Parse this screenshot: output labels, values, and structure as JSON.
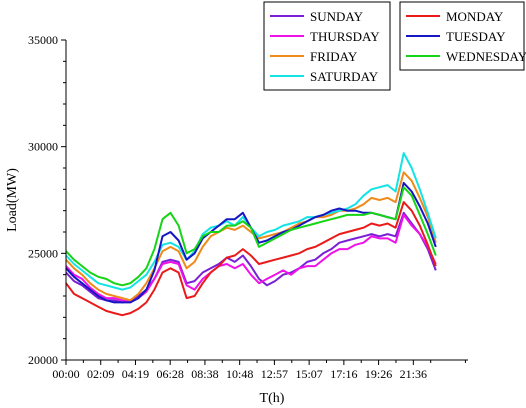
{
  "chart_data": {
    "type": "line",
    "xlabel": "T(h)",
    "ylabel": "Load(MW)",
    "ylim": [
      20000,
      35000
    ],
    "yticks": [
      20000,
      25000,
      30000,
      35000
    ],
    "x_hours": [
      0,
      0.5,
      1,
      1.5,
      2,
      2.5,
      3,
      3.5,
      4,
      4.5,
      5,
      5.5,
      6,
      6.5,
      7,
      7.5,
      8,
      8.5,
      9,
      9.5,
      10,
      10.5,
      11,
      11.5,
      12,
      12.5,
      13,
      13.5,
      14,
      14.5,
      15,
      15.5,
      16,
      16.5,
      17,
      17.5,
      18,
      18.5,
      19,
      19.5,
      20,
      20.5,
      21,
      21.5,
      22,
      22.5,
      23
    ],
    "xtick_labels": [
      "00:00",
      "02:09",
      "04:19",
      "06:28",
      "08:38",
      "10:48",
      "12:57",
      "15:07",
      "17:16",
      "19:26",
      "21:36"
    ],
    "grid": false,
    "legend_position": "top-right",
    "series": [
      {
        "name": "SUNDAY",
        "color": "#7a1fd6",
        "values": [
          24100,
          23700,
          23500,
          23200,
          22900,
          22800,
          22800,
          22700,
          22800,
          23000,
          23300,
          23800,
          24600,
          24700,
          24600,
          23600,
          23700,
          24100,
          24300,
          24500,
          24800,
          24600,
          24900,
          24400,
          23800,
          23500,
          23700,
          24000,
          24100,
          24300,
          24600,
          24700,
          25000,
          25200,
          25500,
          25600,
          25700,
          25800,
          25900,
          25800,
          25900,
          25800,
          26900,
          26400,
          25900,
          25200,
          24200
        ]
      },
      {
        "name": "THURSDAY",
        "color": "#ee12e8",
        "values": [
          24400,
          24000,
          23800,
          23400,
          23100,
          22900,
          22900,
          22800,
          22700,
          22900,
          23200,
          23800,
          24500,
          24600,
          24500,
          23500,
          23300,
          23800,
          24100,
          24400,
          24500,
          24300,
          24500,
          24000,
          23600,
          23800,
          24000,
          24200,
          24000,
          24300,
          24400,
          24400,
          24700,
          25000,
          25200,
          25200,
          25400,
          25500,
          25800,
          25700,
          25700,
          25500,
          26800,
          26300,
          25900,
          25300,
          24500
        ]
      },
      {
        "name": "FRIDAY",
        "color": "#f08a18",
        "values": [
          24700,
          24300,
          24000,
          23600,
          23300,
          23100,
          23000,
          22900,
          22800,
          23100,
          23600,
          24300,
          25100,
          25300,
          25100,
          24300,
          24600,
          25300,
          25800,
          26000,
          26200,
          26100,
          26300,
          26000,
          25700,
          25800,
          25900,
          26000,
          26200,
          26400,
          26500,
          26700,
          26700,
          26800,
          27000,
          27000,
          27100,
          27300,
          27600,
          27500,
          27600,
          27400,
          28800,
          28400,
          27600,
          26700,
          25500
        ]
      },
      {
        "name": "SATURDAY",
        "color": "#12e4e6",
        "values": [
          24900,
          24500,
          24200,
          23900,
          23600,
          23500,
          23400,
          23300,
          23400,
          23700,
          24000,
          24600,
          25400,
          25500,
          25300,
          24700,
          25100,
          25900,
          26200,
          26300,
          26500,
          26300,
          26700,
          26200,
          25800,
          26000,
          26100,
          26300,
          26400,
          26500,
          26700,
          26700,
          26800,
          26900,
          27000,
          27100,
          27300,
          27700,
          28000,
          28100,
          28200,
          27900,
          29700,
          29000,
          28000,
          26900,
          25700
        ]
      },
      {
        "name": "MONDAY",
        "color": "#ea1a1a",
        "values": [
          23600,
          23100,
          22900,
          22700,
          22500,
          22300,
          22200,
          22100,
          22200,
          22400,
          22700,
          23300,
          24100,
          24300,
          24100,
          22900,
          23000,
          23600,
          24100,
          24400,
          24800,
          24900,
          25200,
          24900,
          24500,
          24600,
          24700,
          24800,
          24900,
          25000,
          25200,
          25300,
          25500,
          25700,
          25900,
          26000,
          26100,
          26200,
          26400,
          26300,
          26400,
          26200,
          27400,
          27000,
          26300,
          25400,
          24400
        ]
      },
      {
        "name": "TUESDAY",
        "color": "#1616c4",
        "values": [
          24300,
          23900,
          23600,
          23300,
          23000,
          22800,
          22700,
          22700,
          22700,
          22900,
          23300,
          24200,
          25800,
          26000,
          25600,
          24700,
          25000,
          25700,
          26000,
          26300,
          26600,
          26600,
          26900,
          26200,
          25500,
          25600,
          25800,
          26000,
          26100,
          26300,
          26500,
          26700,
          26800,
          27000,
          27100,
          27000,
          27000,
          26900,
          26900,
          26800,
          26700,
          26600,
          28300,
          27900,
          27200,
          26400,
          25300
        ]
      },
      {
        "name": "WEDNESDAY",
        "color": "#16d416",
        "values": [
          25100,
          24700,
          24400,
          24100,
          23900,
          23800,
          23600,
          23500,
          23600,
          23900,
          24300,
          25200,
          26600,
          26900,
          26300,
          25000,
          25200,
          25800,
          26000,
          26000,
          26300,
          26300,
          26500,
          26200,
          25300,
          25500,
          25700,
          25900,
          26100,
          26200,
          26300,
          26400,
          26500,
          26600,
          26700,
          26800,
          26800,
          26800,
          26900,
          26800,
          26700,
          26600,
          28100,
          27700,
          26800,
          25900,
          24900
        ]
      }
    ],
    "legend_groups": [
      [
        "SUNDAY",
        "THURSDAY",
        "FRIDAY",
        "SATURDAY"
      ],
      [
        "MONDAY",
        "TUESDAY",
        "WEDNESDAY"
      ]
    ]
  }
}
